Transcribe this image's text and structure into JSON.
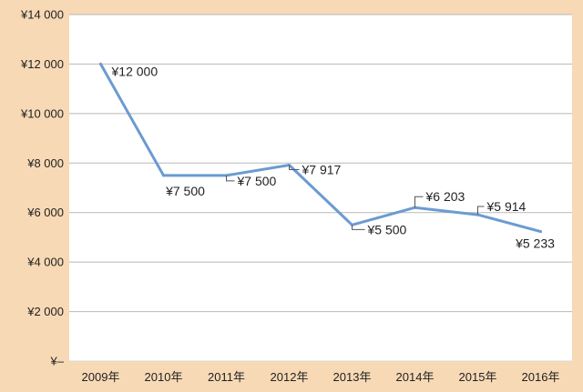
{
  "colors": {
    "background": "#f7d9b5",
    "plot_area": "#ffffff",
    "gridline": "#b8b8b8",
    "line": "#6b9bd1",
    "leader": "#555555"
  },
  "chart_data": {
    "type": "line",
    "title": "",
    "xlabel": "",
    "ylabel": "",
    "categories": [
      "2009年",
      "2010年",
      "2011年",
      "2012年",
      "2013年",
      "2014年",
      "2015年",
      "2016年"
    ],
    "series": [
      {
        "values": [
          12000,
          7500,
          7500,
          7917,
          5500,
          6203,
          5914,
          5233
        ],
        "data_labels": [
          "¥12 000",
          "¥7 500",
          "¥7 500",
          "¥7 917",
          "¥5 500",
          "¥6 203",
          "¥5 914",
          "¥5 233"
        ]
      }
    ],
    "ylim": [
      0,
      14000
    ],
    "yticks": [
      0,
      2000,
      4000,
      6000,
      8000,
      10000,
      12000,
      14000
    ],
    "ytick_labels": [
      "¥–",
      "¥2 000",
      "¥4 000",
      "¥6 000",
      "¥8 000",
      "¥10 000",
      "¥12 000",
      "¥14 000"
    ],
    "grid": "horizontal",
    "legend": "none"
  }
}
